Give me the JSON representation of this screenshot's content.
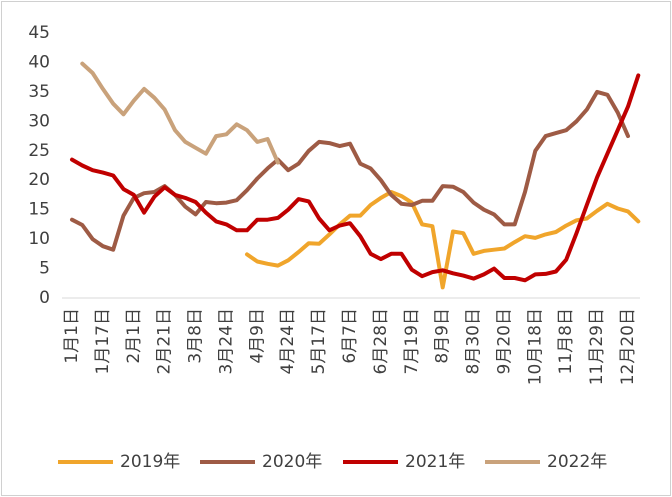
{
  "chart_data": {
    "type": "line",
    "categories": [
      "1月1日",
      null,
      null,
      "1月17日",
      null,
      null,
      "2月1日",
      null,
      null,
      "2月21日",
      null,
      null,
      "3月8日",
      null,
      null,
      "3月24日",
      null,
      null,
      "4月9日",
      null,
      null,
      "4月24日",
      null,
      null,
      "5月17日",
      null,
      null,
      "6月7日",
      null,
      null,
      "6月28日",
      null,
      null,
      "7月19日",
      null,
      null,
      "8月9日",
      null,
      null,
      "8月30日",
      null,
      null,
      "9月20日",
      null,
      null,
      "10月18日",
      null,
      null,
      "11月8日",
      null,
      null,
      "11月29日",
      null,
      null,
      "12月20日",
      null
    ],
    "series": [
      {
        "name": "2019年",
        "color": "#f0a52b",
        "values": [
          null,
          null,
          null,
          null,
          null,
          null,
          null,
          null,
          null,
          null,
          null,
          null,
          null,
          null,
          null,
          null,
          null,
          7.4,
          6.2,
          5.8,
          5.5,
          6.4,
          7.8,
          9.3,
          9.2,
          10.8,
          12.5,
          14,
          14,
          15.8,
          17,
          18,
          17.3,
          16.2,
          12.5,
          12.2,
          1.8,
          11.3,
          11,
          7.5,
          8,
          8.2,
          8.4,
          9.5,
          10.5,
          10.2,
          10.8,
          11.2,
          12.3,
          13.2,
          13.5,
          14.8,
          16,
          15.2,
          14.7,
          13
        ]
      },
      {
        "name": "2020年",
        "color": "#9e5b45",
        "values": [
          13.3,
          12.4,
          10,
          8.8,
          8.2,
          14,
          17,
          17.8,
          18,
          19,
          17.5,
          15.5,
          14.2,
          16.3,
          16.1,
          16.2,
          16.6,
          18.3,
          20.3,
          22,
          23.5,
          21.7,
          22.8,
          25,
          26.5,
          26.3,
          25.8,
          26.2,
          22.8,
          22,
          20,
          17.5,
          16,
          15.8,
          16.5,
          16.5,
          19,
          18.9,
          18,
          16.2,
          15,
          14.2,
          12.5,
          12.5,
          18,
          25,
          27.5,
          28,
          28.5,
          30,
          32,
          35,
          34.5,
          31.5,
          27.5,
          null
        ]
      },
      {
        "name": "2021年",
        "color": "#c00000",
        "values": [
          23.5,
          22.5,
          21.7,
          21.3,
          20.8,
          18.5,
          17.5,
          14.5,
          17.2,
          18.8,
          17.5,
          17,
          16.3,
          14.5,
          13,
          12.5,
          11.5,
          11.5,
          13.3,
          13.3,
          13.6,
          15,
          16.8,
          16.4,
          13.5,
          11.5,
          12.3,
          12.7,
          10.5,
          7.5,
          6.6,
          7.5,
          7.5,
          4.8,
          3.7,
          4.4,
          4.7,
          4.2,
          3.8,
          3.3,
          4,
          5,
          3.4,
          3.4,
          3,
          4,
          4.1,
          4.5,
          6.5,
          11,
          15.8,
          20.5,
          24.5,
          28.5,
          32.5,
          37.8
        ]
      },
      {
        "name": "2022年",
        "color": "#c9a27b",
        "values": [
          null,
          39.8,
          38.2,
          35.5,
          33,
          31.2,
          33.5,
          35.5,
          34,
          32,
          28.5,
          26.5,
          25.5,
          24.5,
          27.5,
          27.8,
          29.5,
          28.5,
          26.5,
          27,
          23,
          null,
          null,
          null,
          null,
          null,
          null,
          null,
          null,
          null,
          null,
          null,
          null,
          null,
          null,
          null,
          null,
          null,
          null,
          null,
          null,
          null,
          null,
          null,
          null,
          null,
          null,
          null,
          null,
          null,
          null,
          null,
          null,
          null,
          null,
          null
        ]
      }
    ],
    "ylim": [
      0,
      45
    ],
    "yticks": [
      0,
      5,
      10,
      15,
      20,
      25,
      30,
      35,
      40,
      45
    ],
    "grid": false,
    "legend": "bottom"
  }
}
